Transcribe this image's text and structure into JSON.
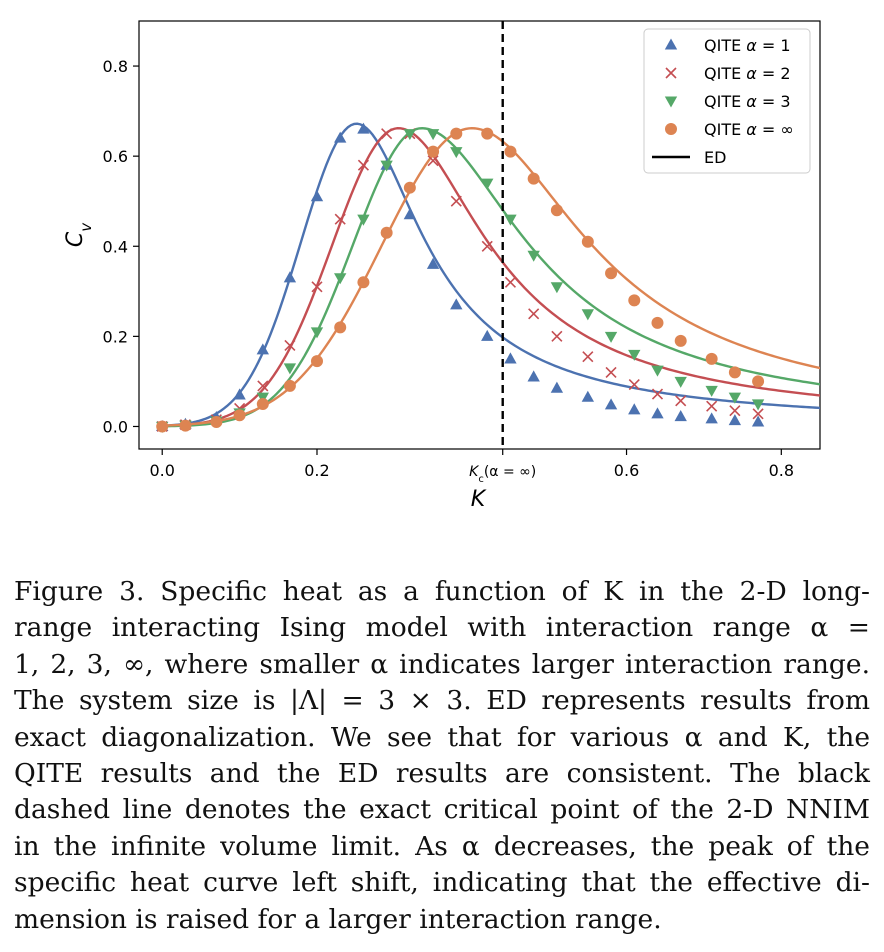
{
  "chart_data": {
    "type": "line",
    "title": "",
    "xlabel": "K",
    "ylabel": "C_v",
    "xlim": [
      -0.03,
      0.85
    ],
    "ylim": [
      -0.05,
      0.9
    ],
    "x_ticks": [
      {
        "value": 0.0,
        "label": "0.0"
      },
      {
        "value": 0.2,
        "label": "0.2"
      },
      {
        "value": 0.44,
        "label": "K_c(α = ∞)"
      },
      {
        "value": 0.6,
        "label": "0.6"
      },
      {
        "value": 0.8,
        "label": "0.8"
      }
    ],
    "y_ticks": [
      {
        "value": 0.0,
        "label": "0.0"
      },
      {
        "value": 0.2,
        "label": "0.2"
      },
      {
        "value": 0.4,
        "label": "0.4"
      },
      {
        "value": 0.6,
        "label": "0.6"
      },
      {
        "value": 0.8,
        "label": "0.8"
      }
    ],
    "critical_line": {
      "x": 0.44,
      "style": "dashed",
      "color": "#000000"
    },
    "legend": {
      "position": "top-right",
      "entries": [
        {
          "label": "QITE α = 1",
          "marker": "triangle-up",
          "color": "#4c72b0"
        },
        {
          "label": "QITE α = 2",
          "marker": "x",
          "color": "#c44e52"
        },
        {
          "label": "QITE α = 3",
          "marker": "triangle-down",
          "color": "#55a868"
        },
        {
          "label": "QITE α = ∞",
          "marker": "circle",
          "color": "#dd8452"
        },
        {
          "label": "ED",
          "marker": "line",
          "color": "#000000"
        }
      ]
    },
    "series": [
      {
        "name": "QITE α = 1",
        "marker": "triangle-up",
        "color": "#4c72b0",
        "x": [
          0.0,
          0.03,
          0.07,
          0.1,
          0.13,
          0.165,
          0.2,
          0.23,
          0.26,
          0.29,
          0.32,
          0.35,
          0.38,
          0.42,
          0.45,
          0.48,
          0.51,
          0.55,
          0.58,
          0.61,
          0.64,
          0.67,
          0.71,
          0.74,
          0.77
        ],
        "y": [
          0.0,
          0.005,
          0.02,
          0.07,
          0.17,
          0.33,
          0.51,
          0.64,
          0.66,
          0.58,
          0.47,
          0.36,
          0.27,
          0.2,
          0.15,
          0.11,
          0.085,
          0.065,
          0.048,
          0.037,
          0.028,
          0.022,
          0.017,
          0.013,
          0.01
        ]
      },
      {
        "name": "QITE α = 2",
        "marker": "x",
        "color": "#c44e52",
        "x": [
          0.0,
          0.03,
          0.07,
          0.1,
          0.13,
          0.165,
          0.2,
          0.23,
          0.26,
          0.29,
          0.32,
          0.35,
          0.38,
          0.42,
          0.45,
          0.48,
          0.51,
          0.55,
          0.58,
          0.61,
          0.64,
          0.67,
          0.71,
          0.74,
          0.77
        ],
        "y": [
          0.0,
          0.004,
          0.015,
          0.04,
          0.09,
          0.18,
          0.31,
          0.46,
          0.58,
          0.65,
          0.65,
          0.59,
          0.5,
          0.4,
          0.32,
          0.25,
          0.2,
          0.155,
          0.12,
          0.093,
          0.072,
          0.057,
          0.045,
          0.035,
          0.028
        ]
      },
      {
        "name": "QITE α = 3",
        "marker": "triangle-down",
        "color": "#55a868",
        "x": [
          0.0,
          0.03,
          0.07,
          0.1,
          0.13,
          0.165,
          0.2,
          0.23,
          0.26,
          0.29,
          0.32,
          0.35,
          0.38,
          0.42,
          0.45,
          0.48,
          0.51,
          0.55,
          0.58,
          0.61,
          0.64,
          0.67,
          0.71,
          0.74,
          0.77
        ],
        "y": [
          0.0,
          0.003,
          0.012,
          0.03,
          0.065,
          0.13,
          0.21,
          0.33,
          0.46,
          0.58,
          0.65,
          0.65,
          0.61,
          0.54,
          0.46,
          0.38,
          0.31,
          0.25,
          0.2,
          0.16,
          0.125,
          0.1,
          0.08,
          0.065,
          0.05
        ]
      },
      {
        "name": "QITE α = ∞",
        "marker": "circle",
        "color": "#dd8452",
        "x": [
          0.0,
          0.03,
          0.07,
          0.1,
          0.13,
          0.165,
          0.2,
          0.23,
          0.26,
          0.29,
          0.32,
          0.35,
          0.38,
          0.42,
          0.45,
          0.48,
          0.51,
          0.55,
          0.58,
          0.61,
          0.64,
          0.67,
          0.71,
          0.74,
          0.77
        ],
        "y": [
          0.0,
          0.002,
          0.01,
          0.025,
          0.05,
          0.09,
          0.145,
          0.22,
          0.32,
          0.43,
          0.53,
          0.61,
          0.65,
          0.65,
          0.61,
          0.55,
          0.48,
          0.41,
          0.34,
          0.28,
          0.23,
          0.19,
          0.15,
          0.12,
          0.1
        ]
      }
    ]
  },
  "caption": {
    "lines": [
      "Figure 3.  Specific heat as a function of K in the 2-D long-",
      "range interacting Ising model with interaction range α =",
      "1, 2, 3, ∞, where smaller α indicates larger interaction range.",
      "The system size is |Λ| = 3 × 3.  ED represents results from",
      "exact diagonalization.  We see that for various α and K, the",
      "QITE results and the ED results are consistent.  The black",
      "dashed line denotes the exact critical point of the 2-D NNIM",
      "in the infinite volume limit.  As α decreases, the peak of the",
      "specific heat curve left shift, indicating that the effective di-",
      "mension is raised for a larger interaction range."
    ]
  }
}
